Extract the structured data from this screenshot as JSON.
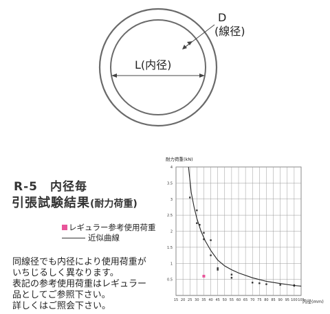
{
  "diagram": {
    "d_label": "D",
    "d_sub_label": "(線径)",
    "l_label": "L(内径)"
  },
  "product": {
    "code_title": "R-5　内径毎",
    "test_title": "引張試験結果",
    "test_title_note": "(耐力荷重)"
  },
  "legend": {
    "regular": "レギュラー参考使用荷重",
    "approx": "近似曲線",
    "regular_color": "#e8559a"
  },
  "notes": [
    "同線径でも内径により使用荷重が",
    "いちじるしく異なります。",
    "表記の参考使用荷重はレギュラー",
    "品としてご参照下さい。",
    "詳しくはご照会下さい。"
  ],
  "chart_data": {
    "type": "scatter",
    "ylabel": "耐力荷重(kN)",
    "xlabel": "内径(mm)",
    "xlim": [
      15,
      105
    ],
    "ylim": [
      0,
      4.0
    ],
    "x_ticks": [
      "15",
      "20",
      "25",
      "30",
      "35",
      "40",
      "45",
      "50",
      "55",
      "60",
      "65",
      "70",
      "75",
      "80",
      "85",
      "90",
      "95",
      "100",
      "105"
    ],
    "y_ticks": [
      "0.5",
      "1",
      "1.5",
      "2",
      "2.5",
      "3",
      "3.5",
      "4"
    ],
    "grid": true,
    "series": [
      {
        "name": "",
        "kind": "points",
        "color": "#333333",
        "x": [
          25,
          30,
          30,
          32,
          35,
          35,
          40,
          40,
          45,
          45,
          55,
          55,
          70,
          75,
          80,
          90,
          100,
          100
        ],
        "y": [
          3.05,
          2.65,
          2.25,
          2.2,
          1.95,
          1.75,
          1.72,
          1.25,
          0.85,
          0.8,
          0.65,
          0.55,
          0.4,
          0.38,
          0.35,
          0.33,
          0.32,
          0.3
        ]
      },
      {
        "name": "レギュラー参考使用荷重",
        "kind": "points",
        "color": "#e8559a",
        "x": [
          35
        ],
        "y": [
          0.6
        ]
      },
      {
        "name": "近似曲線",
        "kind": "curve",
        "color": "#222222",
        "x": [
          24,
          26,
          28,
          30,
          33,
          36,
          40,
          45,
          50,
          55,
          60,
          70,
          80,
          90,
          100,
          105
        ],
        "y": [
          4.0,
          3.2,
          2.75,
          2.4,
          2.0,
          1.7,
          1.4,
          1.1,
          0.92,
          0.8,
          0.7,
          0.55,
          0.44,
          0.37,
          0.31,
          0.29
        ]
      }
    ]
  }
}
